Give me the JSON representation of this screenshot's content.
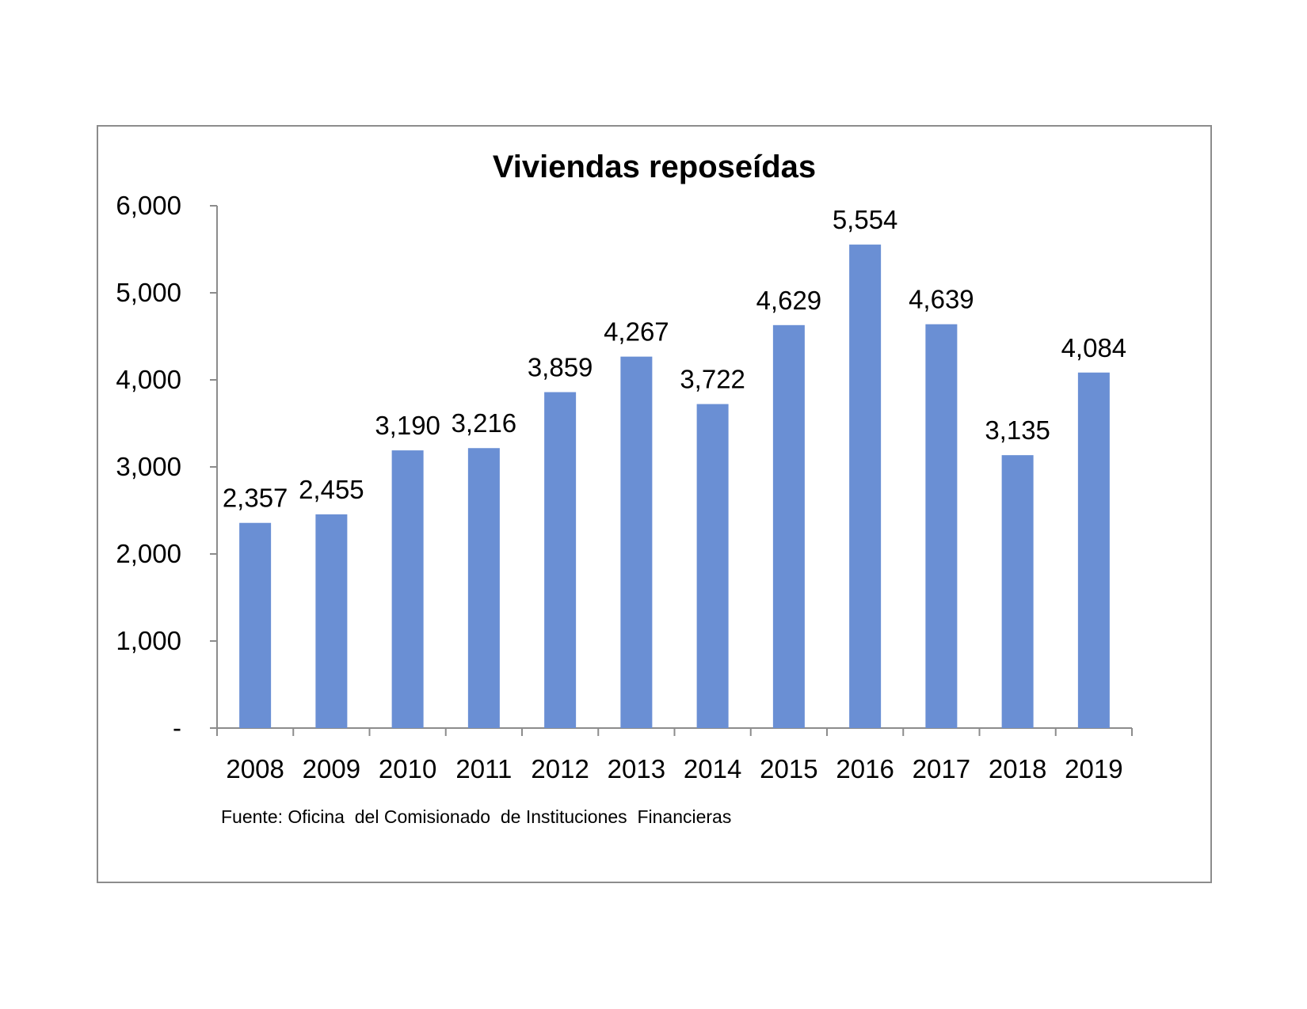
{
  "chart_data": {
    "type": "bar",
    "title": "Viviendas reposeídas",
    "categories": [
      "2008",
      "2009",
      "2010",
      "2011",
      "2012",
      "2013",
      "2014",
      "2015",
      "2016",
      "2017",
      "2018",
      "2019"
    ],
    "values": [
      2357,
      2455,
      3190,
      3216,
      3859,
      4267,
      3722,
      4629,
      5554,
      4639,
      3135,
      4084
    ],
    "value_labels": [
      "2,357",
      "2,455",
      "3,190",
      "3,216",
      "3,859",
      "4,267",
      "3,722",
      "4,629",
      "5,554",
      "4,639",
      "3,135",
      "4,084"
    ],
    "ylim": [
      0,
      6000
    ],
    "yticks": [
      0,
      1000,
      2000,
      3000,
      4000,
      5000,
      6000
    ],
    "ytick_labels": [
      "-",
      "1,000",
      "2,000",
      "3,000",
      "4,000",
      "5,000",
      "6,000"
    ],
    "bar_color": "#6a8fd4",
    "grid": false,
    "source": "Fuente: Oficina  del Comisionado  de Instituciones  Financieras"
  }
}
